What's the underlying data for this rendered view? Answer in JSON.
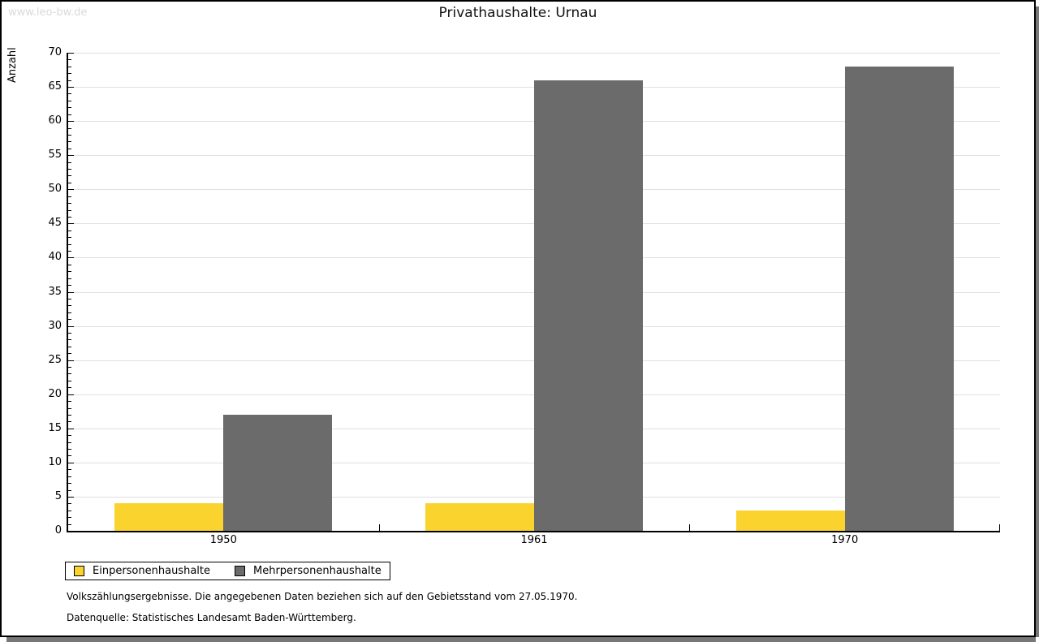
{
  "watermark": "www.leo-bw.de",
  "title": "Privathaushalte: Urnau",
  "ylabel": "Anzahl",
  "footnotes": [
    "Volkszählungsergebnisse. Die angegebenen Daten beziehen sich auf den Gebietsstand vom 27.05.1970.",
    "Datenquelle: Statistisches Landesamt Baden-Württemberg."
  ],
  "colors": {
    "series1": "#fbd32f",
    "series2": "#6b6b6b",
    "grid": "#e0e0e0",
    "axis": "#000000",
    "watermark": "#dadada",
    "shadow": "#777777"
  },
  "chart_data": {
    "type": "bar",
    "categories": [
      "1950",
      "1961",
      "1970"
    ],
    "series": [
      {
        "name": "Einpersonenhaushalte",
        "color": "#fbd32f",
        "values": [
          4,
          4,
          3
        ]
      },
      {
        "name": "Mehrpersonenhaushalte",
        "color": "#6b6b6b",
        "values": [
          17,
          66,
          68
        ]
      }
    ],
    "title": "Privathaushalte: Urnau",
    "xlabel": "",
    "ylabel": "Anzahl",
    "ylim": [
      0,
      70
    ],
    "ytick_major": 5,
    "ytick_minor": 1,
    "grid": "horizontal-major",
    "legend_position": "bottom-left",
    "bar_orientation": "vertical",
    "grouped": true
  }
}
